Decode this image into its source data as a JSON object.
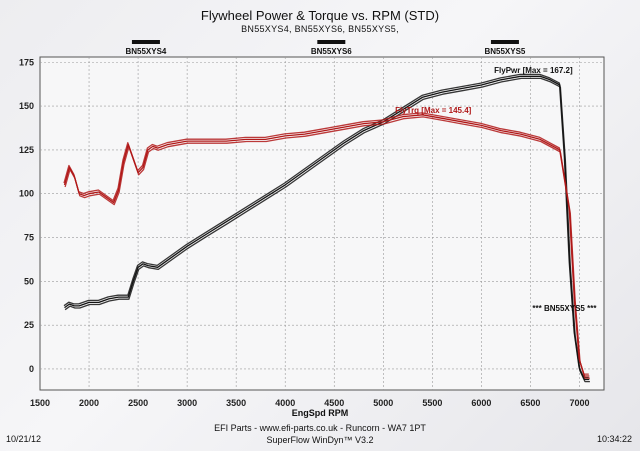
{
  "header": {
    "title": "Flywheel Power & Torque vs. RPM (STD)",
    "subtitle": "BN55XYS4, BN55XYS6, BN55XYS5,"
  },
  "footer": {
    "line1": "EFI Parts - www.efi-parts.co.uk - Runcorn - WA7 1PT",
    "line2": "SuperFlow WinDyn™ V3.2",
    "date": "10/21/12",
    "time": "10:34:22"
  },
  "colors": {
    "power": "#141414",
    "torque": "#b01818",
    "grid": "#9a9a9a",
    "frame": "#555555"
  },
  "chart_data": {
    "type": "line",
    "title": "Flywheel Power & Torque vs. RPM (STD)",
    "subtitle": "BN55XYS4, BN55XYS6, BN55XYS5,",
    "xlabel": "EngSpd RPM",
    "ylabel": "",
    "xlim": [
      1500,
      7250
    ],
    "ylim": [
      -12,
      178
    ],
    "xticks": [
      1500,
      2000,
      2500,
      3000,
      3500,
      4000,
      4500,
      5000,
      5500,
      6000,
      6500,
      7000
    ],
    "yticks": [
      0,
      25,
      50,
      75,
      100,
      125,
      150,
      175
    ],
    "grid": true,
    "run_markers": [
      {
        "label": "BN55XYS4",
        "x": 2580
      },
      {
        "label": "BN55XYS6",
        "x": 4470
      },
      {
        "label": "BN55XYS5",
        "x": 6240
      }
    ],
    "annotations": [
      {
        "text": "FlyPwr [Max = 167.2]",
        "x": 6130,
        "y": 169,
        "series": "power"
      },
      {
        "text": "FlyTrq [Max = 145.4]",
        "x": 5120,
        "y": 146,
        "series": "torque"
      },
      {
        "text": "*** BN55XYS5 ***",
        "x": 6520,
        "y": 33,
        "series": "none"
      }
    ],
    "series": [
      {
        "name": "FlyPwr",
        "color": "#141414",
        "x": [
          1750,
          1800,
          1850,
          1900,
          2000,
          2100,
          2200,
          2300,
          2400,
          2450,
          2500,
          2550,
          2600,
          2700,
          2800,
          2900,
          3000,
          3200,
          3400,
          3600,
          3800,
          4000,
          4200,
          4400,
          4600,
          4800,
          5000,
          5200,
          5400,
          5600,
          5800,
          6000,
          6200,
          6400,
          6600,
          6700,
          6800,
          6850,
          6900,
          6950,
          7000,
          7050,
          7100
        ],
        "values": [
          35,
          37,
          36,
          36,
          38,
          38,
          40,
          41,
          41,
          50,
          58,
          60,
          59,
          58,
          62,
          66,
          70,
          77,
          84,
          91,
          98,
          105,
          113,
          121,
          129,
          136,
          141,
          148,
          155,
          158,
          160,
          162,
          165,
          167,
          167,
          165,
          162,
          120,
          60,
          20,
          0,
          -6,
          -6
        ]
      },
      {
        "name": "FlyTrq",
        "color": "#b01818",
        "x": [
          1750,
          1800,
          1850,
          1900,
          1950,
          2000,
          2100,
          2200,
          2250,
          2300,
          2350,
          2400,
          2450,
          2500,
          2550,
          2600,
          2650,
          2700,
          2800,
          3000,
          3200,
          3400,
          3600,
          3800,
          4000,
          4200,
          4400,
          4600,
          4800,
          5000,
          5200,
          5400,
          5600,
          5800,
          6000,
          6200,
          6400,
          6600,
          6800,
          6900,
          6950,
          7000,
          7050,
          7100
        ],
        "values": [
          105,
          115,
          110,
          100,
          99,
          100,
          101,
          97,
          95,
          102,
          118,
          128,
          120,
          112,
          115,
          125,
          127,
          126,
          128,
          130,
          130,
          130,
          131,
          131,
          133,
          134,
          136,
          138,
          140,
          141,
          144,
          145,
          143,
          141,
          139,
          136,
          134,
          131,
          125,
          90,
          40,
          5,
          -4,
          -4
        ]
      }
    ]
  }
}
